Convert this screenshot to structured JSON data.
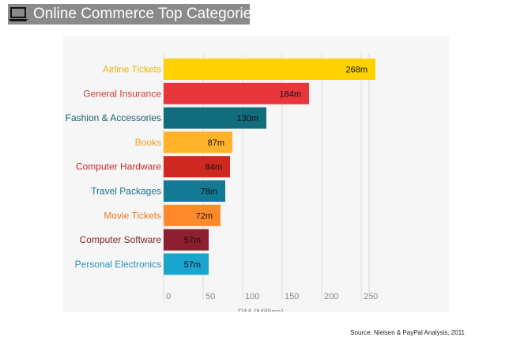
{
  "header": {
    "title": "Online Commerce Top Categories",
    "icon": "laptop-icon"
  },
  "source": "Source: Nielsen & PayPal Analysis, 2011",
  "chart_data": {
    "type": "bar",
    "orientation": "horizontal",
    "title": "",
    "xlabel": "RM (Million)",
    "ylabel": "",
    "xlim": [
      0,
      260
    ],
    "xticks": [
      0,
      50,
      100,
      150,
      200,
      250
    ],
    "grid": true,
    "categories": [
      "Airline Tickets",
      "General Insurance",
      "Fashion & Accessories",
      "Books",
      "Computer Hardware",
      "Travel Packages",
      "Movie Tickets",
      "Computer Software",
      "Personal Electronics"
    ],
    "values": [
      268,
      184,
      130,
      87,
      84,
      78,
      72,
      57,
      57
    ],
    "value_labels": [
      "268m",
      "184m",
      "130m",
      "87m",
      "84m",
      "78m",
      "72m",
      "57m",
      "57m"
    ],
    "colors": [
      "#ffd200",
      "#e8363c",
      "#116c7c",
      "#ffb22a",
      "#cf2820",
      "#137a95",
      "#ff8a2b",
      "#8d1f2e",
      "#1aa5cf"
    ],
    "label_colors": [
      "#f3b400",
      "#d23a34",
      "#135f6f",
      "#f0a01a",
      "#c12a22",
      "#177590",
      "#f27a1e",
      "#7f1f2b",
      "#1d93bd"
    ]
  }
}
